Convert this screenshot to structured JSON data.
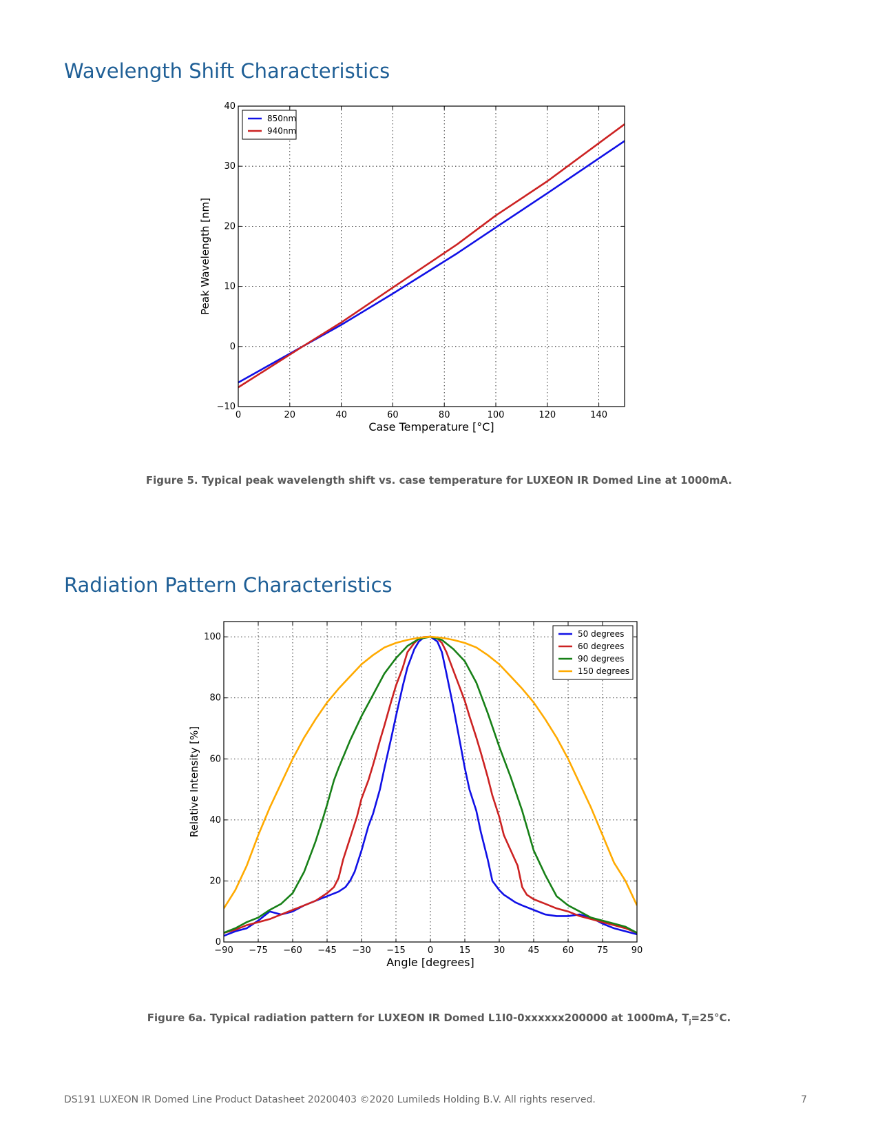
{
  "sections": {
    "wavelength_title": "Wavelength Shift Characteristics",
    "radiation_title": "Radiation Pattern Characteristics"
  },
  "captions": {
    "figure5": "Figure 5. Typical peak wavelength shift vs. case temperature for LUXEON IR Domed Line at 1000mA.",
    "figure6a_main": "Figure 6a. Typical radiation pattern for LUXEON IR Domed L1I0-0xxxxxx200000 at 1000mA, T",
    "figure6a_sub": "j",
    "figure6a_tail": "=25°C."
  },
  "footer": {
    "text": "DS191 LUXEON IR Domed Line Product Datasheet  20200403 ©2020 Lumileds Holding B.V. All rights reserved.",
    "page": "7"
  },
  "chart_data": [
    {
      "type": "line",
      "xlabel": "Case Temperature [°C]",
      "ylabel": "Peak Wavelength [nm]",
      "xlim": [
        0,
        150
      ],
      "ylim": [
        -10,
        40
      ],
      "xticks": [
        0,
        20,
        40,
        60,
        80,
        100,
        120,
        140
      ],
      "yticks": [
        -10,
        0,
        10,
        20,
        30,
        40
      ],
      "grid": true,
      "legend_position": "top-left",
      "series": [
        {
          "name": "850nm",
          "color": "#1010e6",
          "x": [
            0,
            25,
            40,
            60,
            85,
            100,
            120,
            150
          ],
          "y": [
            -6,
            0,
            3.6,
            8.8,
            15.5,
            19.8,
            25.5,
            34.2
          ]
        },
        {
          "name": "940nm",
          "color": "#cc2222",
          "x": [
            0,
            25,
            40,
            60,
            85,
            100,
            120,
            150
          ],
          "y": [
            -6.8,
            0,
            4,
            9.8,
            17,
            21.8,
            27.5,
            37
          ]
        }
      ]
    },
    {
      "type": "line",
      "xlabel": "Angle [degrees]",
      "ylabel": "Relative Intensity [%]",
      "xlim": [
        -90,
        90
      ],
      "ylim": [
        0,
        105
      ],
      "xticks": [
        -90,
        -75,
        -60,
        -45,
        -30,
        -15,
        0,
        15,
        30,
        45,
        60,
        75,
        90
      ],
      "yticks": [
        0,
        20,
        40,
        60,
        80,
        100
      ],
      "grid": true,
      "legend_position": "top-right",
      "series": [
        {
          "name": "50 degrees",
          "color": "#1010e6",
          "x": [
            -90,
            -85,
            -80,
            -75,
            -70,
            -65,
            -60,
            -55,
            -50,
            -45,
            -40,
            -37,
            -35,
            -33,
            -30,
            -27,
            -25,
            -22,
            -20,
            -17,
            -15,
            -12,
            -10,
            -7,
            -5,
            -3,
            0,
            3,
            5,
            7,
            10,
            12,
            15,
            17,
            20,
            22,
            25,
            27,
            30,
            32,
            35,
            37,
            40,
            45,
            50,
            55,
            60,
            65,
            70,
            75,
            80,
            85,
            90
          ],
          "y": [
            2,
            3.5,
            4.5,
            7,
            10,
            9,
            10,
            12,
            13.5,
            15,
            16.5,
            18,
            20,
            23,
            30,
            38,
            42,
            50,
            57,
            67,
            74,
            84,
            90,
            96,
            98.5,
            99.7,
            100,
            98.5,
            95,
            88,
            77,
            69,
            57,
            50,
            43,
            36,
            27,
            20,
            17,
            15.5,
            14,
            13,
            12,
            10.5,
            9,
            8.5,
            8.5,
            9,
            8,
            6,
            4.5,
            3.5,
            2.5
          ]
        },
        {
          "name": "60 degrees",
          "color": "#cc2222",
          "x": [
            -90,
            -85,
            -80,
            -75,
            -70,
            -65,
            -60,
            -55,
            -50,
            -45,
            -42,
            -40,
            -38,
            -35,
            -32,
            -30,
            -27,
            -25,
            -22,
            -20,
            -17,
            -15,
            -12,
            -10,
            -7,
            -5,
            -3,
            0,
            3,
            5,
            7,
            10,
            12,
            15,
            17,
            20,
            22,
            25,
            27,
            30,
            32,
            35,
            38,
            40,
            42,
            45,
            50,
            55,
            60,
            65,
            70,
            75,
            80,
            85,
            90
          ],
          "y": [
            3,
            4,
            5.5,
            6.5,
            7.5,
            9,
            10.5,
            12,
            13.5,
            16,
            18,
            21,
            27,
            34,
            41,
            47,
            53,
            58,
            66,
            71,
            79,
            84,
            90,
            95,
            98,
            99.4,
            99.9,
            100,
            99.5,
            98,
            95,
            89,
            85,
            79,
            74,
            67,
            62,
            54,
            48,
            41,
            35,
            30,
            25,
            18,
            15.5,
            14,
            12.5,
            11,
            10,
            8.5,
            7.5,
            6.5,
            5.5,
            4.5,
            3
          ]
        },
        {
          "name": "90 degrees",
          "color": "#178017",
          "x": [
            -90,
            -85,
            -80,
            -75,
            -70,
            -65,
            -60,
            -55,
            -52,
            -50,
            -47,
            -45,
            -42,
            -40,
            -35,
            -30,
            -25,
            -20,
            -15,
            -10,
            -5,
            0,
            5,
            10,
            15,
            20,
            25,
            30,
            35,
            40,
            45,
            50,
            55,
            60,
            65,
            70,
            75,
            80,
            85,
            90
          ],
          "y": [
            3,
            4.5,
            6.5,
            8,
            10.5,
            12.5,
            16,
            23,
            29,
            33,
            40,
            45,
            53,
            57,
            66,
            74,
            81,
            88,
            93,
            97,
            99.3,
            100,
            99,
            96,
            92,
            85,
            75,
            64,
            54,
            43,
            30,
            22,
            15,
            12,
            10,
            8,
            7,
            6,
            5,
            3
          ]
        },
        {
          "name": "150 degrees",
          "color": "#ffaa00",
          "x": [
            -90,
            -85,
            -80,
            -75,
            -70,
            -65,
            -60,
            -55,
            -50,
            -45,
            -40,
            -35,
            -30,
            -25,
            -20,
            -15,
            -10,
            -5,
            0,
            5,
            10,
            15,
            20,
            25,
            30,
            35,
            40,
            45,
            50,
            55,
            60,
            65,
            70,
            75,
            80,
            85,
            90
          ],
          "y": [
            11,
            17,
            25,
            35,
            44,
            52,
            60,
            67,
            73,
            78.5,
            83,
            87,
            91,
            94,
            96.5,
            98,
            99,
            99.7,
            100,
            99.7,
            99,
            98,
            96.5,
            94,
            91,
            87,
            83,
            78.5,
            73,
            67,
            60,
            52,
            44,
            35,
            26,
            20,
            12
          ]
        }
      ]
    }
  ]
}
